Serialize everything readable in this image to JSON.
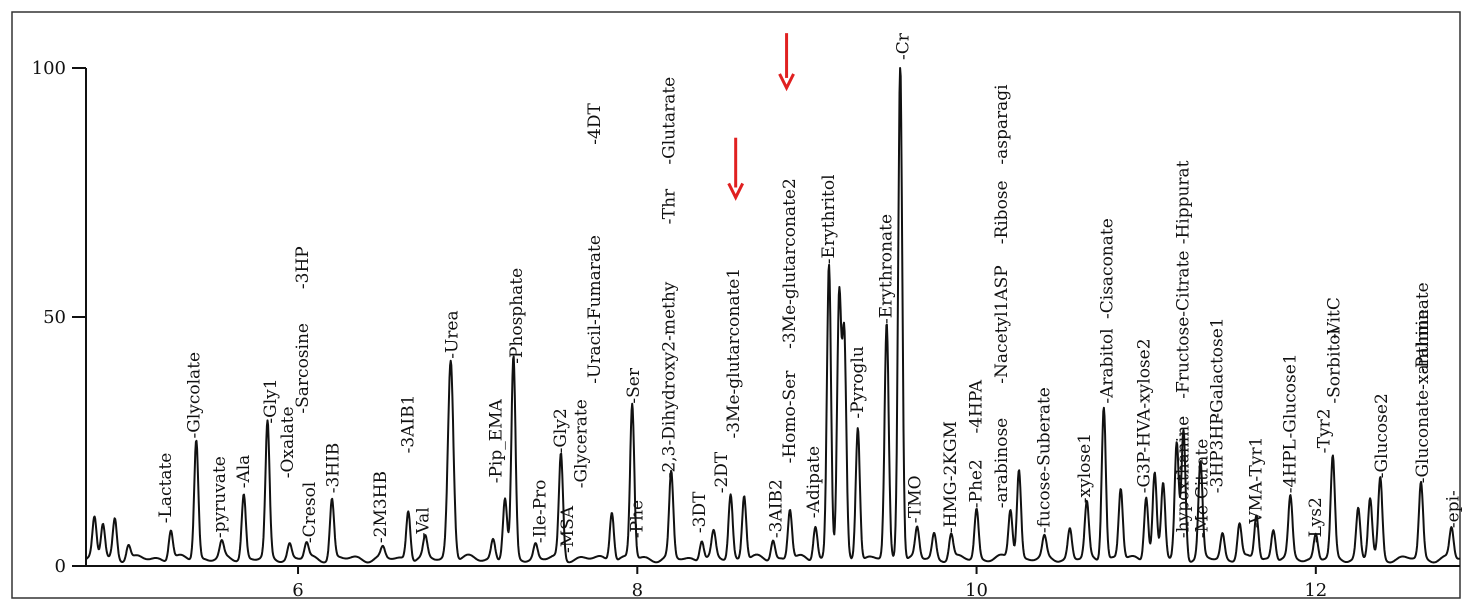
{
  "chart_data": {
    "type": "line",
    "title": "",
    "xlabel": "",
    "ylabel": "",
    "xlim": [
      4.75,
      12.85
    ],
    "ylim": [
      0,
      100
    ],
    "x_ticks": [
      {
        "value": 6,
        "label": "6"
      },
      {
        "value": 8,
        "label": "8"
      },
      {
        "value": 10,
        "label": "10"
      },
      {
        "value": 12,
        "label": "12"
      }
    ],
    "y_ticks": [
      {
        "value": 0,
        "label": "0"
      },
      {
        "value": 50,
        "label": "50"
      },
      {
        "value": 100,
        "label": "100"
      }
    ],
    "baseline": 1.5,
    "peaks": [
      {
        "x": 4.8,
        "y": 8,
        "w": 0.012
      },
      {
        "x": 4.85,
        "y": 7,
        "w": 0.012
      },
      {
        "x": 4.92,
        "y": 8,
        "w": 0.012
      },
      {
        "x": 5.0,
        "y": 3,
        "w": 0.012
      },
      {
        "x": 5.25,
        "y": 6,
        "w": 0.012
      },
      {
        "x": 5.4,
        "y": 24,
        "w": 0.012
      },
      {
        "x": 5.55,
        "y": 3,
        "w": 0.012
      },
      {
        "x": 5.68,
        "y": 13,
        "w": 0.012
      },
      {
        "x": 5.82,
        "y": 27,
        "w": 0.012
      },
      {
        "x": 5.95,
        "y": 3,
        "w": 0.012
      },
      {
        "x": 6.05,
        "y": 3,
        "w": 0.012
      },
      {
        "x": 6.2,
        "y": 12,
        "w": 0.012
      },
      {
        "x": 6.5,
        "y": 2,
        "w": 0.012
      },
      {
        "x": 6.65,
        "y": 10,
        "w": 0.012
      },
      {
        "x": 6.75,
        "y": 4,
        "w": 0.012
      },
      {
        "x": 6.9,
        "y": 40,
        "w": 0.016
      },
      {
        "x": 7.15,
        "y": 4,
        "w": 0.012
      },
      {
        "x": 7.22,
        "y": 12,
        "w": 0.012
      },
      {
        "x": 7.27,
        "y": 40,
        "w": 0.012
      },
      {
        "x": 7.4,
        "y": 3,
        "w": 0.012
      },
      {
        "x": 7.55,
        "y": 21,
        "w": 0.012
      },
      {
        "x": 7.85,
        "y": 10,
        "w": 0.012
      },
      {
        "x": 7.97,
        "y": 31,
        "w": 0.012
      },
      {
        "x": 8.2,
        "y": 17,
        "w": 0.012
      },
      {
        "x": 8.38,
        "y": 4,
        "w": 0.012
      },
      {
        "x": 8.45,
        "y": 5,
        "w": 0.012
      },
      {
        "x": 8.55,
        "y": 13,
        "w": 0.012
      },
      {
        "x": 8.63,
        "y": 13,
        "w": 0.012
      },
      {
        "x": 8.8,
        "y": 4,
        "w": 0.012
      },
      {
        "x": 8.9,
        "y": 10,
        "w": 0.012
      },
      {
        "x": 9.05,
        "y": 7,
        "w": 0.012
      },
      {
        "x": 9.13,
        "y": 59,
        "w": 0.012
      },
      {
        "x": 9.19,
        "y": 52,
        "w": 0.012
      },
      {
        "x": 9.22,
        "y": 44,
        "w": 0.012
      },
      {
        "x": 9.3,
        "y": 27,
        "w": 0.012
      },
      {
        "x": 9.47,
        "y": 47,
        "w": 0.012
      },
      {
        "x": 9.55,
        "y": 100,
        "w": 0.012
      },
      {
        "x": 9.65,
        "y": 6,
        "w": 0.012
      },
      {
        "x": 9.75,
        "y": 5,
        "w": 0.012
      },
      {
        "x": 9.85,
        "y": 5,
        "w": 0.012
      },
      {
        "x": 10.0,
        "y": 10,
        "w": 0.012
      },
      {
        "x": 10.2,
        "y": 10,
        "w": 0.012
      },
      {
        "x": 10.25,
        "y": 18,
        "w": 0.012
      },
      {
        "x": 10.4,
        "y": 4,
        "w": 0.012
      },
      {
        "x": 10.55,
        "y": 6,
        "w": 0.012
      },
      {
        "x": 10.65,
        "y": 11,
        "w": 0.012
      },
      {
        "x": 10.75,
        "y": 31,
        "w": 0.012
      },
      {
        "x": 10.85,
        "y": 14,
        "w": 0.012
      },
      {
        "x": 11.0,
        "y": 13,
        "w": 0.012
      },
      {
        "x": 11.05,
        "y": 17,
        "w": 0.012
      },
      {
        "x": 11.1,
        "y": 15,
        "w": 0.012
      },
      {
        "x": 11.18,
        "y": 23,
        "w": 0.012
      },
      {
        "x": 11.22,
        "y": 26,
        "w": 0.012
      },
      {
        "x": 11.32,
        "y": 19,
        "w": 0.012
      },
      {
        "x": 11.45,
        "y": 5,
        "w": 0.012
      },
      {
        "x": 11.55,
        "y": 7,
        "w": 0.012
      },
      {
        "x": 11.65,
        "y": 9,
        "w": 0.012
      },
      {
        "x": 11.75,
        "y": 6,
        "w": 0.012
      },
      {
        "x": 11.85,
        "y": 12,
        "w": 0.012
      },
      {
        "x": 12.0,
        "y": 5,
        "w": 0.012
      },
      {
        "x": 12.1,
        "y": 20,
        "w": 0.012
      },
      {
        "x": 12.25,
        "y": 10,
        "w": 0.012
      },
      {
        "x": 12.32,
        "y": 12,
        "w": 0.012
      },
      {
        "x": 12.38,
        "y": 16,
        "w": 0.012
      },
      {
        "x": 12.62,
        "y": 15,
        "w": 0.012
      },
      {
        "x": 12.8,
        "y": 6,
        "w": 0.012
      }
    ],
    "annotations": [
      {
        "text": "-Lactate",
        "x": 5.25,
        "y": 8
      },
      {
        "text": "-Glycolate",
        "x": 5.42,
        "y": 25
      },
      {
        "text": "-pyruvate",
        "x": 5.57,
        "y": 5
      },
      {
        "text": "-Ala",
        "x": 5.71,
        "y": 15
      },
      {
        "text": "-Gly1",
        "x": 5.87,
        "y": 28
      },
      {
        "text": "-Oxalate",
        "x": 5.97,
        "y": 17
      },
      {
        "text": "-Sarcosine",
        "x": 6.06,
        "y": 30
      },
      {
        "text": "-3HP",
        "x": 6.06,
        "y": 55
      },
      {
        "text": "-Cresol",
        "x": 6.1,
        "y": 4
      },
      {
        "text": "-3HIB",
        "x": 6.24,
        "y": 14
      },
      {
        "text": "-2M3HB",
        "x": 6.52,
        "y": 4
      },
      {
        "text": "-Val",
        "x": 6.77,
        "y": 5
      },
      {
        "text": "-3AIB1",
        "x": 6.68,
        "y": 22
      },
      {
        "text": "-Urea",
        "x": 6.94,
        "y": 41
      },
      {
        "text": "-Phosphate",
        "x": 7.32,
        "y": 40
      },
      {
        "text": "-Pip_EMA",
        "x": 7.2,
        "y": 16
      },
      {
        "text": "-Ile-Pro",
        "x": 7.46,
        "y": 4
      },
      {
        "text": "-Gly2",
        "x": 7.58,
        "y": 22
      },
      {
        "text": "-MSA",
        "x": 7.62,
        "y": 2
      },
      {
        "text": "-Glycerate",
        "x": 7.7,
        "y": 15
      },
      {
        "text": "-Uracil-Fumarate",
        "x": 7.78,
        "y": 36
      },
      {
        "text": "-4DT",
        "x": 7.78,
        "y": 84
      },
      {
        "text": "-Ser",
        "x": 8.01,
        "y": 32
      },
      {
        "text": "-Phe",
        "x": 8.03,
        "y": 5
      },
      {
        "text": "-2,3-Dihydroxy2-methy",
        "x": 8.22,
        "y": 17
      },
      {
        "text": "-Thr",
        "x": 8.22,
        "y": 68
      },
      {
        "text": "-Glutarate",
        "x": 8.22,
        "y": 80
      },
      {
        "text": "-3DT",
        "x": 8.4,
        "y": 6
      },
      {
        "text": "-2DT",
        "x": 8.53,
        "y": 14
      },
      {
        "text": "-3Me-glutarconate1",
        "x": 8.6,
        "y": 25
      },
      {
        "text": "-3AIB2",
        "x": 8.85,
        "y": 5
      },
      {
        "text": "-Homo-Ser",
        "x": 8.93,
        "y": 20
      },
      {
        "text": "-3Me-glutarconate2",
        "x": 8.93,
        "y": 43
      },
      {
        "text": "-Adipate",
        "x": 9.07,
        "y": 9
      },
      {
        "text": "-Erythritol",
        "x": 9.16,
        "y": 60
      },
      {
        "text": "-Pyroglu",
        "x": 9.33,
        "y": 29
      },
      {
        "text": "-Erythronate",
        "x": 9.5,
        "y": 48
      },
      {
        "text": "-Cr",
        "x": 9.6,
        "y": 101
      },
      {
        "text": "-TMO",
        "x": 9.67,
        "y": 8
      },
      {
        "text": "-HMG-2KGM",
        "x": 9.88,
        "y": 6
      },
      {
        "text": "-Phe2",
        "x": 10.03,
        "y": 11
      },
      {
        "text": "-4HPA",
        "x": 10.03,
        "y": 26
      },
      {
        "text": "-arabinose",
        "x": 10.18,
        "y": 11
      },
      {
        "text": "-Nacetyl1ASP",
        "x": 10.18,
        "y": 36
      },
      {
        "text": "-Ribose",
        "x": 10.18,
        "y": 64
      },
      {
        "text": "-asparagi",
        "x": 10.18,
        "y": 80
      },
      {
        "text": "-fucose-Suberate",
        "x": 10.43,
        "y": 6
      },
      {
        "text": "-xylose1",
        "x": 10.67,
        "y": 12
      },
      {
        "text": "-Arabitol",
        "x": 10.8,
        "y": 32
      },
      {
        "text": "-Cisaconate",
        "x": 10.8,
        "y": 49
      },
      {
        "text": "-G3P-HVA-xylose2",
        "x": 11.02,
        "y": 14
      },
      {
        "text": "-hypoxthanine",
        "x": 11.25,
        "y": 5
      },
      {
        "text": "-Fructose-Citrate",
        "x": 11.25,
        "y": 33
      },
      {
        "text": "-Hippurat",
        "x": 11.25,
        "y": 64
      },
      {
        "text": "-Me-Citrate",
        "x": 11.36,
        "y": 5
      },
      {
        "text": "-3HP3HP",
        "x": 11.45,
        "y": 14
      },
      {
        "text": "-Galactose1",
        "x": 11.45,
        "y": 29
      },
      {
        "text": "-VMA-Tyr1",
        "x": 11.68,
        "y": 7
      },
      {
        "text": "-4HPL",
        "x": 11.88,
        "y": 14
      },
      {
        "text": "-Glucose1",
        "x": 11.88,
        "y": 25
      },
      {
        "text": "-Lys2",
        "x": 12.03,
        "y": 4
      },
      {
        "text": "-Tyr2",
        "x": 12.08,
        "y": 22
      },
      {
        "text": "-Sorbitol",
        "x": 12.14,
        "y": 32
      },
      {
        "text": "-VitC",
        "x": 12.14,
        "y": 45
      },
      {
        "text": "-Glucose2",
        "x": 12.42,
        "y": 17
      },
      {
        "text": "-Gluconate-xanthine",
        "x": 12.66,
        "y": 16
      },
      {
        "text": "-Palminate",
        "x": 12.66,
        "y": 38
      },
      {
        "text": "-epi-",
        "x": 12.84,
        "y": 7
      }
    ],
    "arrows": [
      {
        "x": 8.58,
        "y_top": 86,
        "y_bottom": 74,
        "color": "#e02020"
      },
      {
        "x": 8.88,
        "y_top": 107,
        "y_bottom": 96,
        "color": "#e02020"
      }
    ]
  }
}
